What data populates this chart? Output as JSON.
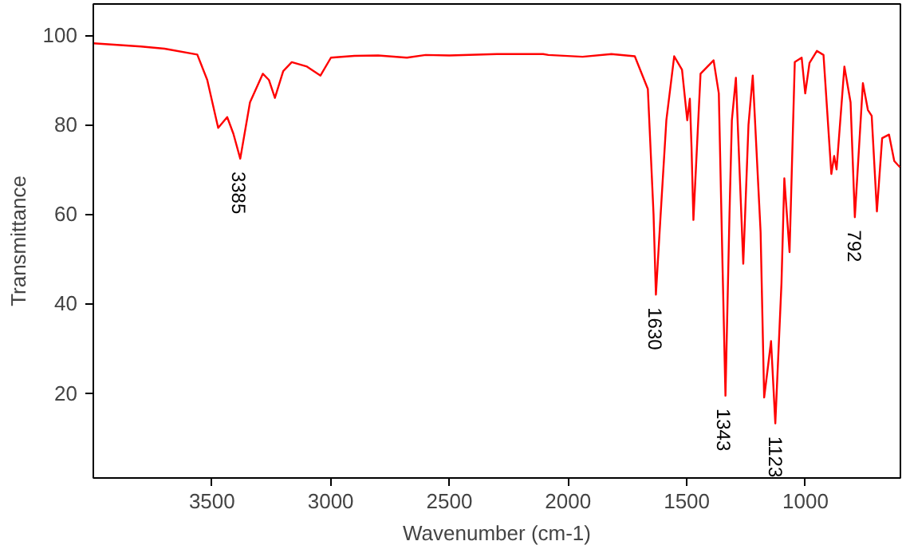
{
  "chart_data": {
    "type": "line",
    "xlabel": "Wavenumber (cm-1)",
    "ylabel": "Transmittance",
    "xlim": [
      4000,
      600
    ],
    "ylim": [
      1,
      107
    ],
    "xticks": [
      3500,
      3000,
      2500,
      2000,
      1500,
      1000
    ],
    "yticks": [
      20,
      40,
      60,
      80,
      100
    ],
    "grid": false,
    "series": [
      {
        "color": "#ff0000",
        "x": [
          4000,
          3800,
          3700,
          3562,
          3520,
          3474,
          3436,
          3410,
          3381,
          3340,
          3286,
          3260,
          3235,
          3200,
          3164,
          3100,
          3043,
          2999,
          2900,
          2800,
          2679,
          2600,
          2500,
          2300,
          2105,
          2083,
          1939,
          1818,
          1719,
          1664,
          1640,
          1630,
          1610,
          1586,
          1553,
          1520,
          1498,
          1487,
          1480,
          1472,
          1442,
          1387,
          1365,
          1350,
          1337,
          1320,
          1310,
          1293,
          1262,
          1240,
          1222,
          1189,
          1174,
          1160,
          1145,
          1127,
          1101,
          1089,
          1067,
          1045,
          1016,
          1001,
          983,
          952,
          924,
          891,
          879,
          869,
          836,
          810,
          792,
          758,
          737,
          721,
          699,
          677,
          648,
          626,
          602
        ],
        "values": [
          98.2,
          97.5,
          97,
          95.7,
          90,
          79.3,
          81.7,
          78,
          72.4,
          85,
          91.4,
          90,
          86,
          92,
          94,
          93,
          91,
          95,
          95.4,
          95.5,
          95,
          95.6,
          95.5,
          95.8,
          95.8,
          95.6,
          95.2,
          95.8,
          95.3,
          88,
          60,
          42,
          60,
          81,
          95.3,
          92.3,
          81,
          85.8,
          75,
          58.7,
          91.4,
          94.4,
          87,
          50,
          19.4,
          60,
          81,
          90.5,
          48.9,
          80,
          91,
          56,
          19,
          25,
          31.6,
          13.2,
          44.6,
          68,
          51.5,
          94,
          95,
          87,
          93.8,
          96.5,
          95.6,
          69,
          73,
          70,
          93,
          85,
          59.3,
          89.3,
          83.3,
          82,
          60.6,
          77,
          77.8,
          71.9,
          70.5
        ]
      }
    ],
    "annotations": [
      {
        "text": "3385",
        "x": 3385,
        "y": 72.4
      },
      {
        "text": "1630",
        "x": 1630,
        "y": 42
      },
      {
        "text": "1343",
        "x": 1343,
        "y": 19.4
      },
      {
        "text": "1123",
        "x": 1123,
        "y": 13.2
      },
      {
        "text": "792",
        "x": 792,
        "y": 59.3
      }
    ]
  }
}
